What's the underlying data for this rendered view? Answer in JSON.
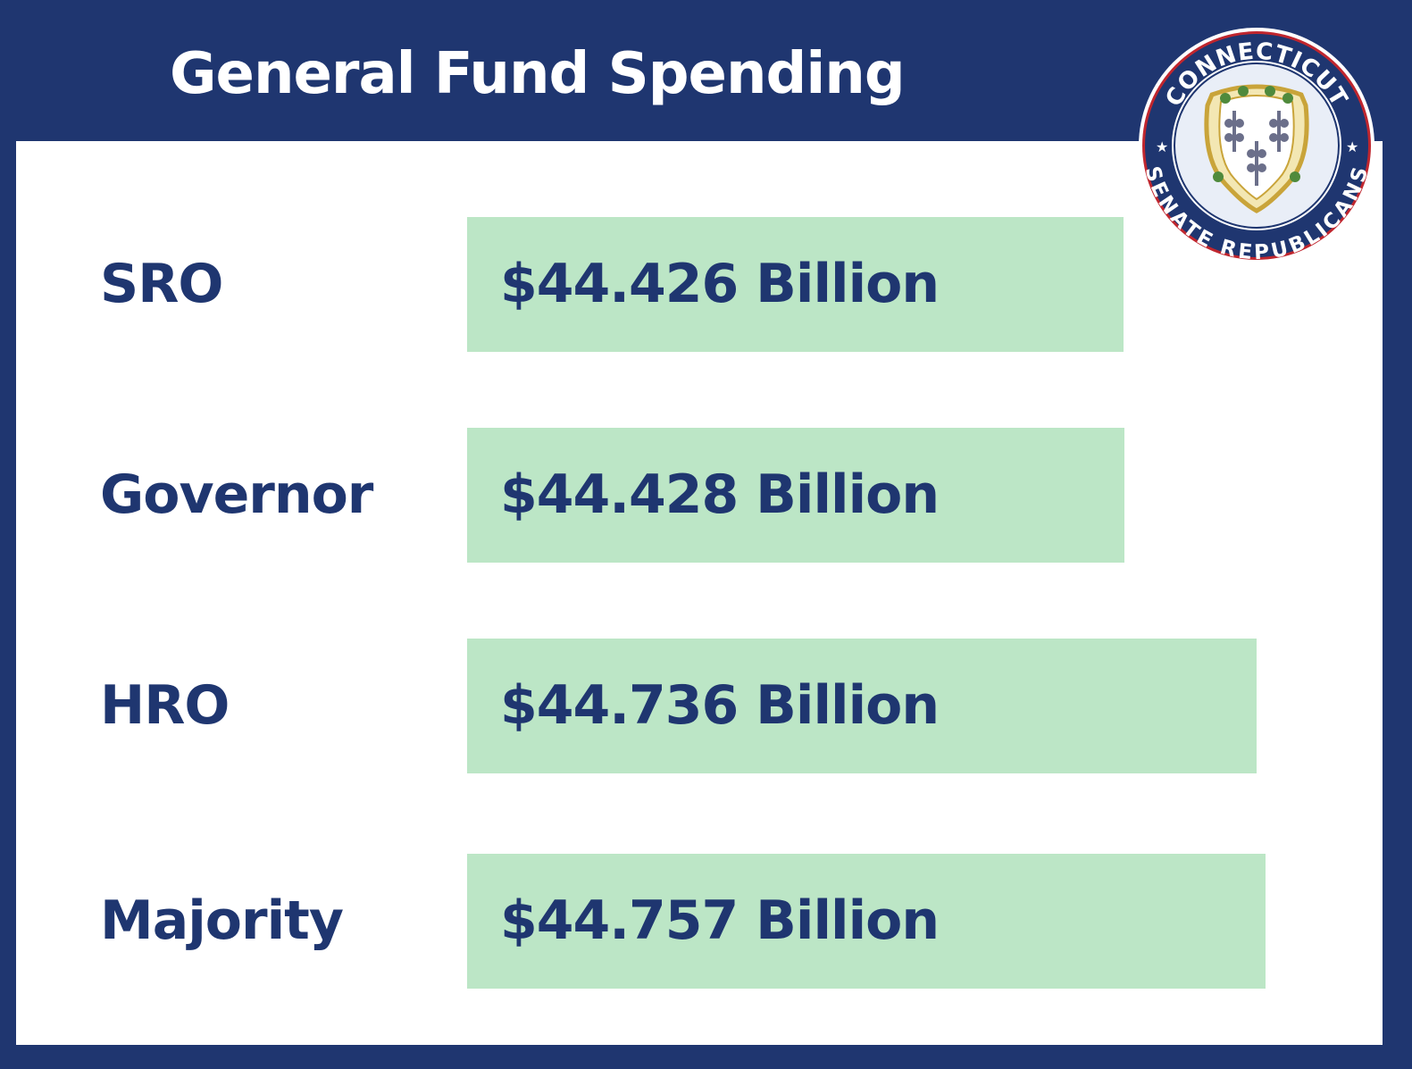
{
  "title": "General Fund Spending",
  "logo": {
    "top_text": "CONNECTICUT",
    "bottom_text": "SENATE REPUBLICANS",
    "colors": {
      "ring": "#1f3670",
      "outline": "#c0262e",
      "shield": "#f3e7b3"
    }
  },
  "colors": {
    "frame": "#1f3670",
    "bar": "#bce6c6",
    "text": "#1f3670"
  },
  "chart_data": {
    "type": "bar",
    "orientation": "horizontal",
    "title": "General Fund Spending",
    "categories": [
      "SRO",
      "Governor",
      "HRO",
      "Majority"
    ],
    "values": [
      44.426,
      44.428,
      44.736,
      44.757
    ],
    "value_labels": [
      "$44.426 Billion",
      "$44.428 Billion",
      "$44.736 Billion",
      "$44.757 Billion"
    ],
    "unit": "Billion",
    "xlabel": "",
    "ylabel": "",
    "grid": false,
    "legend": "none"
  }
}
